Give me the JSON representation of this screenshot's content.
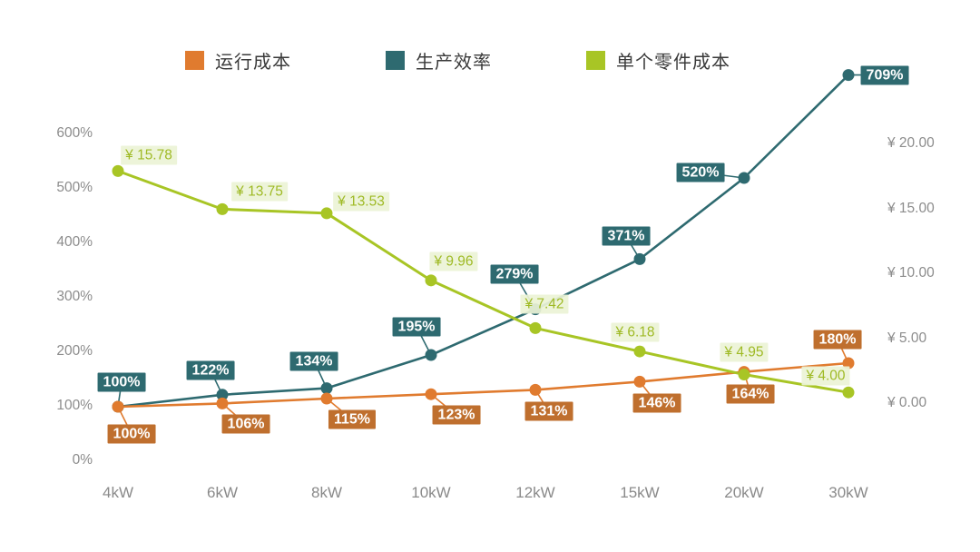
{
  "chart_data": {
    "type": "line",
    "title": "",
    "background": "#FFFFFF",
    "grid": false,
    "legend_position": "top",
    "categories": [
      "4kW",
      "6kW",
      "8kW",
      "10kW",
      "12kW",
      "15kW",
      "20kW",
      "30kW"
    ],
    "left_axis": {
      "unit": "%",
      "ticks": [
        "0%",
        "100%",
        "200%",
        "300%",
        "400%",
        "500%",
        "600%"
      ],
      "values": [
        0,
        100,
        200,
        300,
        400,
        500,
        600
      ],
      "range": [
        0,
        600
      ]
    },
    "right_axis": {
      "unit": "¥",
      "ticks": [
        "¥ 0.00",
        "¥ 5.00",
        "¥ 10.00",
        "¥ 15.00",
        "¥ 20.00"
      ],
      "values": [
        0,
        5,
        10,
        15,
        20
      ],
      "range": [
        0,
        20
      ]
    },
    "series": [
      {
        "key": "operating-cost",
        "name": "运行成本",
        "axis": "left",
        "color": "#E07B2F",
        "label_bg": "#BF6F2E",
        "label_color": "#FFFFFF",
        "values": [
          100,
          106,
          115,
          123,
          131,
          146,
          164,
          180
        ],
        "labels": [
          "100%",
          "106%",
          "115%",
          "123%",
          "131%",
          "146%",
          "164%",
          "180%"
        ],
        "label_pos": [
          {
            "p": "below",
            "dx": 15,
            "dy": 30
          },
          {
            "p": "below",
            "dx": 26,
            "dy": 23
          },
          {
            "p": "below",
            "dx": 28,
            "dy": 23
          },
          {
            "p": "below",
            "dx": 28,
            "dy": 23
          },
          {
            "p": "below",
            "dx": 15,
            "dy": 24
          },
          {
            "p": "below",
            "dx": 19,
            "dy": 24
          },
          {
            "p": "below",
            "dx": 7,
            "dy": 24
          },
          {
            "p": "above",
            "dx": -12,
            "dy": -26
          }
        ]
      },
      {
        "key": "production-efficiency",
        "name": "生产效率",
        "axis": "left",
        "color": "#2E6A70",
        "label_bg": "#2E6A70",
        "label_color": "#FFFFFF",
        "values": [
          100,
          122,
          134,
          195,
          279,
          371,
          520,
          709
        ],
        "labels": [
          "100%",
          "122%",
          "134%",
          "195%",
          "279%",
          "371%",
          "520%",
          "709%"
        ],
        "label_pos": [
          {
            "p": "above",
            "dx": 4,
            "dy": -27
          },
          {
            "p": "above",
            "dx": -13,
            "dy": -27
          },
          {
            "p": "above",
            "dx": -14,
            "dy": -30
          },
          {
            "p": "above",
            "dx": -16,
            "dy": -31
          },
          {
            "p": "above",
            "dx": -23,
            "dy": -39
          },
          {
            "p": "above",
            "dx": -15,
            "dy": -25
          },
          {
            "p": "left",
            "dx": -48,
            "dy": -6
          },
          {
            "p": "right",
            "dx": 40,
            "dy": 0
          }
        ]
      },
      {
        "key": "unit-part-cost",
        "name": "单个零件成本",
        "axis": "right",
        "color": "#A8C525",
        "label_bg": "rgba(236,243,214,0.92)",
        "label_color": "#9FBA25",
        "values": [
          15.78,
          13.75,
          13.53,
          9.96,
          7.42,
          6.18,
          4.95,
          4.0
        ],
        "labels": [
          "¥ 15.78",
          "¥ 13.75",
          "¥ 13.53",
          "¥ 9.96",
          "¥ 7.42",
          "¥ 6.18",
          "¥ 4.95",
          "¥ 4.00"
        ],
        "label_pos": [
          {
            "p": "free",
            "dx": 34,
            "dy": -17
          },
          {
            "p": "free",
            "dx": 41,
            "dy": -19
          },
          {
            "p": "free",
            "dx": 38,
            "dy": -13
          },
          {
            "p": "free",
            "dx": 25,
            "dy": -21
          },
          {
            "p": "free",
            "dx": 10,
            "dy": -26
          },
          {
            "p": "free",
            "dx": -5,
            "dy": -21
          },
          {
            "p": "free",
            "dx": 0,
            "dy": -25
          },
          {
            "p": "free",
            "dx": -25,
            "dy": -18
          }
        ]
      }
    ]
  }
}
